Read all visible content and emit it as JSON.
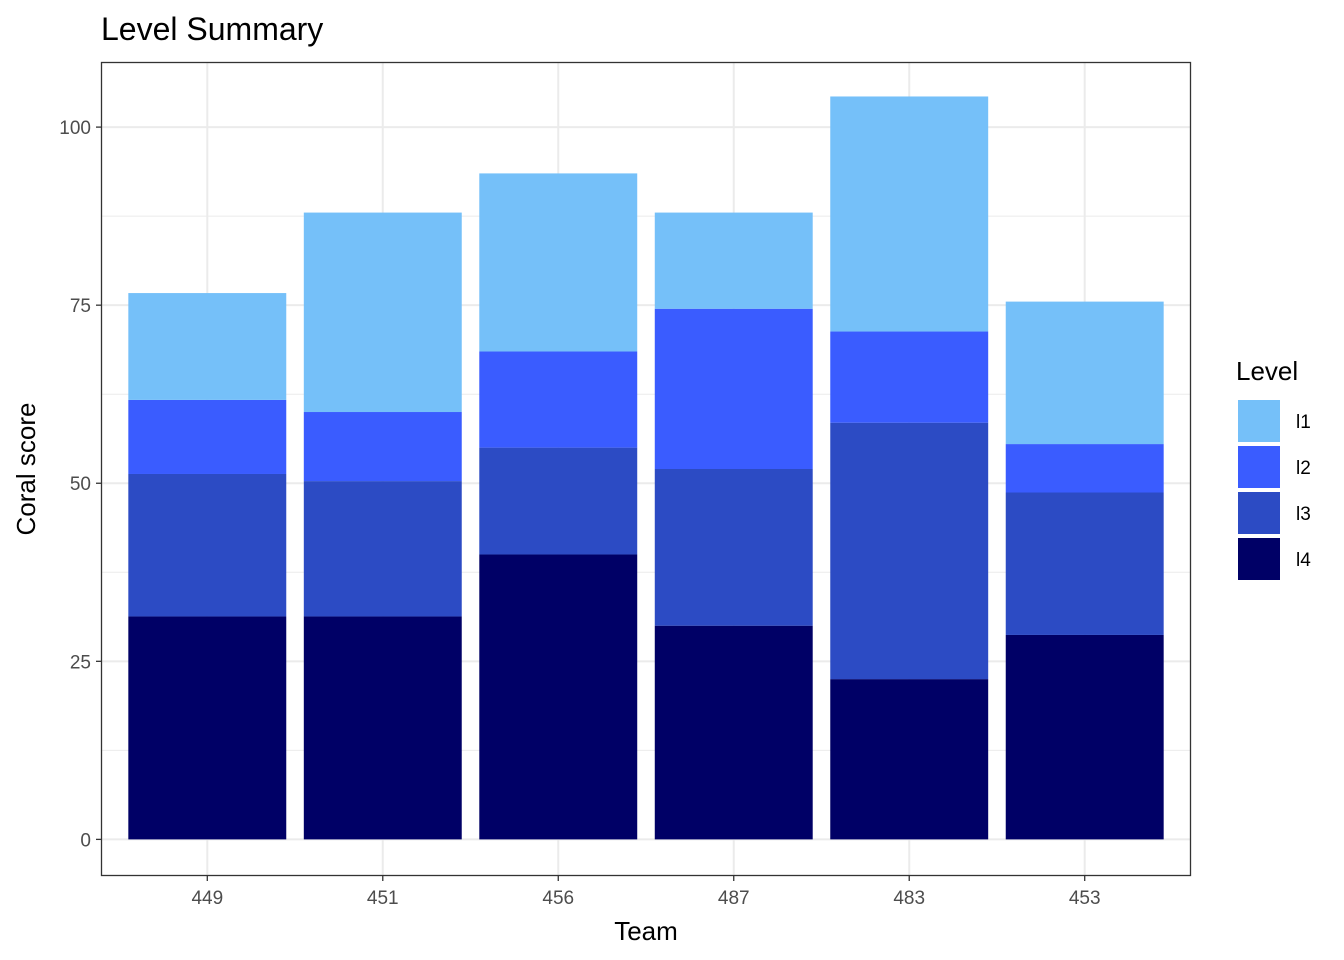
{
  "chart_data": {
    "type": "bar",
    "stacked": true,
    "title": "Level Summary",
    "xlabel": "Team",
    "ylabel": "Coral score",
    "categories": [
      "449",
      "451",
      "456",
      "487",
      "483",
      "453"
    ],
    "ylim": [
      -5,
      109
    ],
    "yticks": [
      0,
      25,
      50,
      75,
      100
    ],
    "grid": true,
    "legend": {
      "title": "Level",
      "position": "right"
    },
    "series": [
      {
        "name": "l4",
        "color": "#000066",
        "values": [
          31.3,
          31.3,
          40.0,
          30.0,
          22.5,
          28.7
        ]
      },
      {
        "name": "l3",
        "color": "#2c4bc4",
        "values": [
          20.0,
          19.0,
          15.0,
          22.0,
          36.0,
          20.0
        ]
      },
      {
        "name": "l2",
        "color": "#3a5cff",
        "values": [
          10.4,
          9.7,
          13.5,
          22.5,
          12.8,
          6.8
        ]
      },
      {
        "name": "l1",
        "color": "#75c0f9",
        "values": [
          15.0,
          28.0,
          25.0,
          13.5,
          33.0,
          20.0
        ]
      }
    ],
    "legend_order": [
      "l1",
      "l2",
      "l3",
      "l4"
    ]
  }
}
